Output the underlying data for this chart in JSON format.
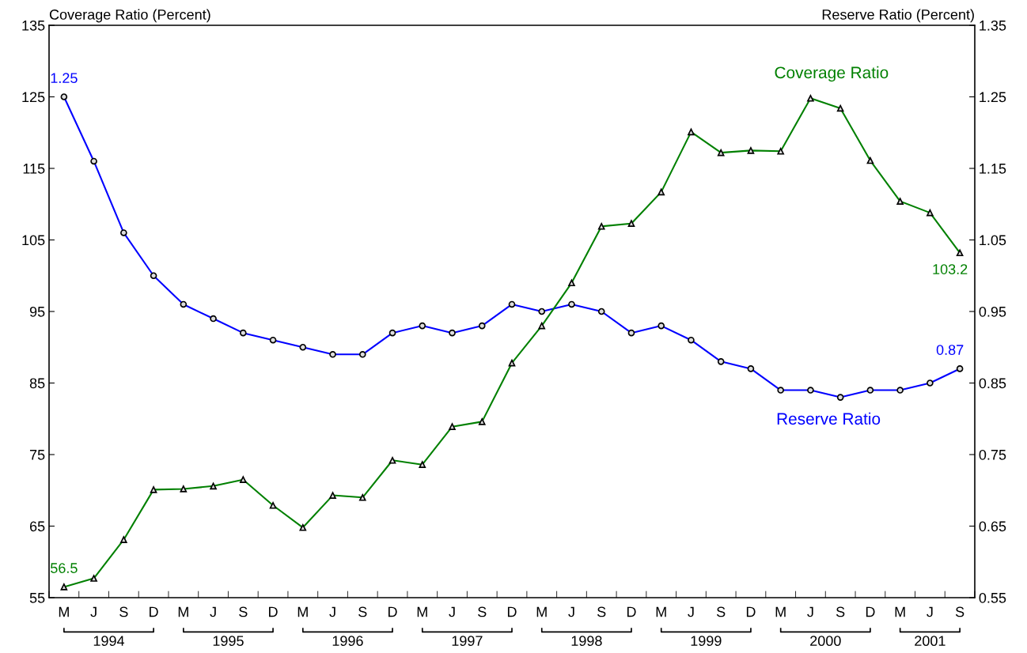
{
  "chart_data": {
    "type": "line",
    "categories": [
      "M",
      "J",
      "S",
      "D",
      "M",
      "J",
      "S",
      "D",
      "M",
      "J",
      "S",
      "D",
      "M",
      "J",
      "S",
      "D",
      "M",
      "J",
      "S",
      "D",
      "M",
      "J",
      "S",
      "D",
      "M",
      "J",
      "S",
      "D",
      "M",
      "J",
      "S"
    ],
    "ylabel": "Coverage Ratio (Percent)",
    "y2label": "Reserve Ratio (Percent)",
    "ylim": [
      55,
      135
    ],
    "yticks": [
      55,
      65,
      75,
      85,
      95,
      105,
      115,
      125,
      135
    ],
    "y2lim": [
      0.55,
      1.35
    ],
    "y2ticks": [
      0.55,
      0.65,
      0.75,
      0.85,
      0.95,
      1.05,
      1.15,
      1.25,
      1.35
    ],
    "series": [
      {
        "name": "Coverage Ratio",
        "color": "#008000",
        "marker": "triangle",
        "values": [
          56.5,
          57.7,
          63.1,
          70.1,
          70.2,
          70.6,
          71.5,
          67.9,
          64.8,
          69.3,
          69.0,
          74.2,
          73.6,
          78.9,
          79.6,
          87.8,
          93.0,
          99.0,
          106.9,
          107.3,
          111.7,
          120.1,
          117.2,
          117.5,
          117.4,
          124.8,
          123.4,
          116.1,
          110.4,
          108.8,
          103.2
        ],
        "value_labels": [
          "56.5",
          null,
          null,
          null,
          null,
          null,
          null,
          null,
          null,
          null,
          null,
          null,
          null,
          null,
          null,
          null,
          null,
          null,
          null,
          null,
          null,
          null,
          null,
          null,
          null,
          null,
          null,
          null,
          null,
          null,
          "103.2"
        ]
      },
      {
        "name": "Reserve Ratio",
        "color": "#0000ff",
        "marker": "circle",
        "axis": "y2",
        "values": [
          1.25,
          1.16,
          1.06,
          1.0,
          0.96,
          0.94,
          0.92,
          0.91,
          0.9,
          0.89,
          0.89,
          0.92,
          0.93,
          0.92,
          0.93,
          0.96,
          0.95,
          0.96,
          0.95,
          0.92,
          0.93,
          0.91,
          0.88,
          0.87,
          0.84,
          0.84,
          0.83,
          0.84,
          0.84,
          0.85,
          0.87
        ],
        "value_labels": [
          "1.25",
          null,
          null,
          null,
          null,
          null,
          null,
          null,
          null,
          null,
          null,
          null,
          null,
          null,
          null,
          null,
          null,
          null,
          null,
          null,
          null,
          null,
          null,
          null,
          null,
          null,
          null,
          null,
          null,
          null,
          "0.87"
        ]
      }
    ],
    "annotations": [
      "1994",
      "1995",
      "1996",
      "1997",
      "1998",
      "1999",
      "2000",
      "2001"
    ],
    "grid": false,
    "line_style": "solid"
  }
}
